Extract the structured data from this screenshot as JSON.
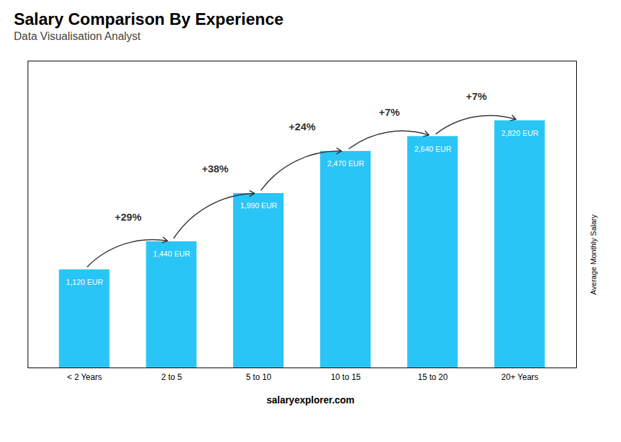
{
  "chart_data": {
    "type": "bar",
    "title": "Salary Comparison By Experience",
    "subtitle": "Data Visualisation Analyst",
    "ylabel": "Average Monthly Salary",
    "caption": "salaryexplorer.com",
    "categories": [
      "< 2 Years",
      "2 to 5",
      "5 to 10",
      "10 to 15",
      "15 to 20",
      "20+ Years"
    ],
    "values": [
      1120,
      1440,
      1990,
      2470,
      2640,
      2820
    ],
    "value_labels": [
      "1,120 EUR",
      "1,440 EUR",
      "1,990 EUR",
      "2,470 EUR",
      "2,640 EUR",
      "2,820 EUR"
    ],
    "data_labels": true,
    "annotations": [
      "+29%",
      "+38%",
      "+24%",
      "+7%",
      "+7%"
    ],
    "color": "#29c5f6",
    "ylim": [
      0,
      3500
    ],
    "tick_labels": "x",
    "grid": false
  }
}
